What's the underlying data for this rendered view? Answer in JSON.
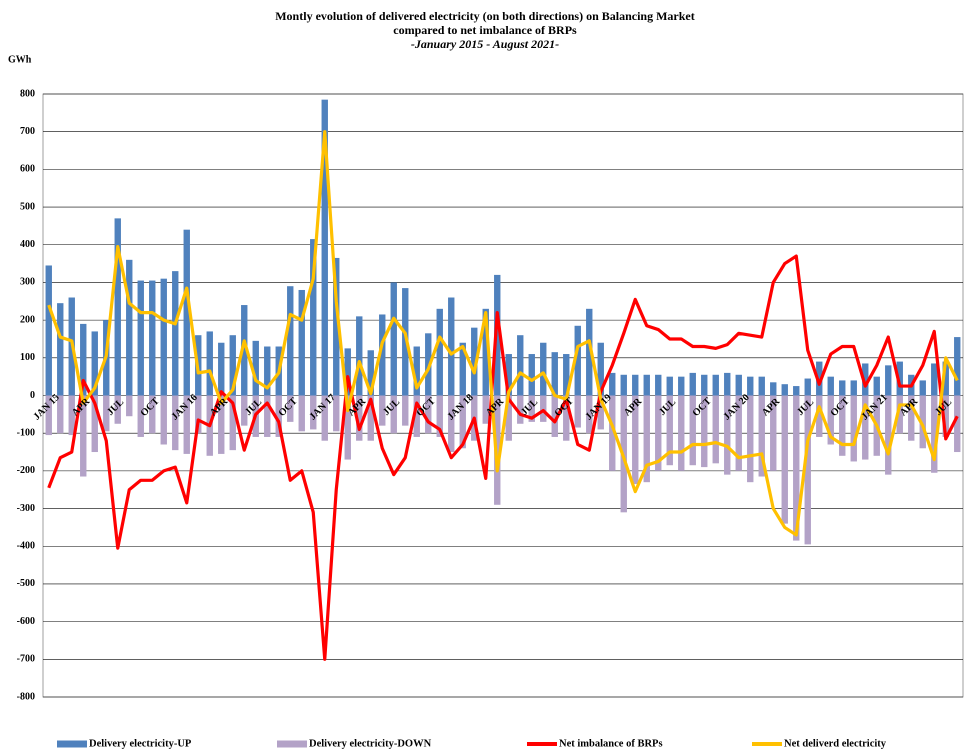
{
  "chart_data": {
    "type": "bar",
    "title": "Montly evolution of delivered electricity (on both directions) on Balancing Market",
    "subtitle": "compared to net imbalance  of BRPs",
    "period": "-January 2015 - August 2021-",
    "y_label": "GWh",
    "ylim": [
      -800,
      800
    ],
    "yticks": [
      -800,
      -700,
      -600,
      -500,
      -400,
      -300,
      -200,
      -100,
      0,
      100,
      200,
      300,
      400,
      500,
      600,
      700,
      800
    ],
    "grid": true,
    "legend": "bottom",
    "categories": [
      "JAN 15",
      null,
      null,
      "APR",
      null,
      null,
      "JUL",
      null,
      null,
      "OCT",
      null,
      null,
      "JAN 16",
      null,
      null,
      "APR",
      null,
      null,
      "JUL",
      null,
      null,
      "OCT",
      null,
      null,
      "JAN 17",
      null,
      null,
      "APR",
      null,
      null,
      "JUL",
      null,
      null,
      "OCT",
      null,
      null,
      "JAN 18",
      null,
      null,
      "APR",
      null,
      null,
      "JUL",
      null,
      null,
      "OCT",
      null,
      null,
      "JAN 19",
      null,
      null,
      "APR",
      null,
      null,
      "JUL",
      null,
      null,
      "OCT",
      null,
      null,
      "JAN 20",
      null,
      null,
      "APR",
      null,
      null,
      "JUL",
      null,
      null,
      "OCT",
      null,
      null,
      "JAN 21",
      null,
      null,
      "APR",
      null,
      null,
      "JUL",
      null
    ],
    "series": [
      {
        "name": "Delivery electricity-UP",
        "type": "bar",
        "color": "#4f81bd",
        "values": [
          345,
          245,
          260,
          190,
          170,
          200,
          470,
          360,
          305,
          305,
          310,
          330,
          440,
          160,
          170,
          140,
          160,
          240,
          145,
          130,
          130,
          290,
          280,
          415,
          785,
          365,
          125,
          210,
          120,
          215,
          300,
          285,
          130,
          165,
          230,
          260,
          140,
          180,
          230,
          320,
          110,
          160,
          110,
          140,
          115,
          110,
          185,
          230,
          140,
          60,
          55,
          55,
          55,
          55,
          50,
          50,
          60,
          55,
          55,
          60,
          55,
          50,
          50,
          35,
          30,
          25,
          45,
          90,
          50,
          40,
          40,
          85,
          50,
          80,
          90,
          55,
          40,
          85,
          90,
          155
        ]
      },
      {
        "name": "Delivery electricity-DOWN",
        "type": "bar",
        "color": "#b3a2c7",
        "values": [
          -105,
          -100,
          -105,
          -215,
          -150,
          -95,
          -75,
          -55,
          -110,
          -100,
          -130,
          -145,
          -155,
          -100,
          -160,
          -155,
          -145,
          -80,
          -110,
          -110,
          -110,
          -70,
          -95,
          -90,
          -120,
          -95,
          -170,
          -120,
          -120,
          -80,
          -100,
          -80,
          -110,
          -100,
          -110,
          -150,
          -140,
          -120,
          -75,
          -290,
          -120,
          -75,
          -70,
          -70,
          -110,
          -120,
          -85,
          -100,
          -90,
          -200,
          -310,
          -235,
          -230,
          -200,
          -185,
          -200,
          -185,
          -190,
          -180,
          -210,
          -200,
          -230,
          -215,
          -200,
          -340,
          -385,
          -395,
          -110,
          -130,
          -160,
          -175,
          -170,
          -160,
          -210,
          -100,
          -120,
          -140,
          -205,
          -110,
          -150
        ]
      },
      {
        "name": "Net imbalance of BRPs",
        "type": "line",
        "color": "#ff0000",
        "values": [
          -245,
          -165,
          -150,
          40,
          -20,
          -120,
          -405,
          -250,
          -225,
          -225,
          -200,
          -190,
          -285,
          -65,
          -80,
          10,
          -20,
          -145,
          -50,
          -20,
          -70,
          -225,
          -200,
          -310,
          -700,
          -250,
          50,
          -90,
          -10,
          -140,
          -210,
          -165,
          -20,
          -70,
          -90,
          -165,
          -130,
          -60,
          -220,
          220,
          -10,
          -50,
          -60,
          -40,
          -70,
          -10,
          -130,
          -145,
          10,
          80,
          165,
          255,
          185,
          175,
          150,
          150,
          130,
          130,
          125,
          135,
          165,
          160,
          155,
          300,
          350,
          370,
          120,
          30,
          110,
          130,
          130,
          25,
          80,
          155,
          25,
          25,
          80,
          170,
          -115,
          -55
        ]
      },
      {
        "name": "Net deliverd electricity",
        "type": "line",
        "color": "#ffc000",
        "values": [
          240,
          155,
          145,
          -20,
          20,
          105,
          395,
          245,
          220,
          220,
          200,
          190,
          285,
          60,
          65,
          -20,
          15,
          145,
          40,
          20,
          60,
          215,
          200,
          310,
          700,
          250,
          -40,
          90,
          5,
          140,
          205,
          165,
          20,
          70,
          155,
          110,
          130,
          60,
          220,
          -200,
          10,
          60,
          40,
          60,
          0,
          -10,
          130,
          145,
          -10,
          -80,
          -165,
          -255,
          -185,
          -175,
          -150,
          -150,
          -130,
          -130,
          -125,
          -135,
          -165,
          -160,
          -155,
          -300,
          -350,
          -370,
          -120,
          -30,
          -110,
          -130,
          -130,
          -25,
          -80,
          -155,
          -25,
          -25,
          -80,
          -170,
          100,
          40
        ]
      }
    ]
  }
}
